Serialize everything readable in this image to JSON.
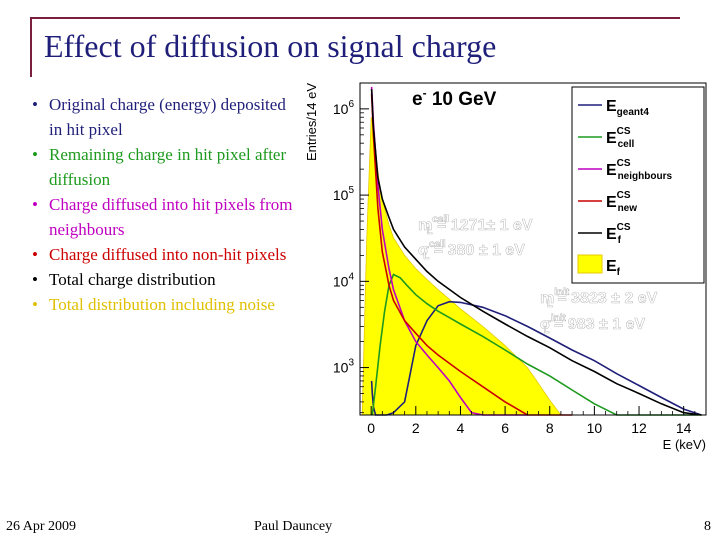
{
  "slide": {
    "title": "Effect of diffusion on signal charge",
    "footer_date": "26 Apr 2009",
    "footer_author": "Paul Dauncey",
    "page_number": "8"
  },
  "bullets": [
    {
      "text": "Original charge (energy) deposited in hit pixel",
      "color": "#1f1f7a"
    },
    {
      "text": "Remaining charge in hit pixel after diffusion",
      "color": "#1e9a1e"
    },
    {
      "text": "Charge diffused into hit pixels from neighbours",
      "color": "#c000c0"
    },
    {
      "text": "Charge diffused into non-hit pixels",
      "color": "#cc0000"
    },
    {
      "text": "Total charge distribution",
      "color": "#000000"
    },
    {
      "text": "Total distribution including noise",
      "color": "#e0c000"
    }
  ],
  "chart_data": {
    "type": "line",
    "title": "e- 10 GeV",
    "title_main": "e",
    "title_sup": "-",
    "title_rest": " 10 GeV",
    "xlabel": "E (keV)",
    "ylabel": "Entries/14 eV",
    "xlim": [
      -0.5,
      15
    ],
    "ylim_log10": [
      2.45,
      6.3
    ],
    "yscale": "log",
    "x_ticks": [
      0,
      2,
      4,
      6,
      8,
      10,
      12,
      14
    ],
    "x_tick_labels": [
      "0",
      "2",
      "4",
      "6",
      "8",
      "10",
      "12",
      "14"
    ],
    "y_ticks": [
      1000,
      10000,
      100000,
      1000000
    ],
    "y_tick_labels": [
      {
        "base": "10",
        "exp": "3"
      },
      {
        "base": "10",
        "exp": "4"
      },
      {
        "base": "10",
        "exp": "5"
      },
      {
        "base": "10",
        "exp": "6"
      }
    ],
    "legend": [
      {
        "main": "E",
        "sub": "geant4",
        "sup": "",
        "color": "#1f1f7a",
        "style": "line"
      },
      {
        "main": "E",
        "sub": "cell",
        "sup": "CS",
        "color": "#1e9a1e",
        "style": "line"
      },
      {
        "main": "E",
        "sub": "neighbours",
        "sup": "CS",
        "color": "#c000c0",
        "style": "line"
      },
      {
        "main": "E",
        "sub": "new",
        "sup": "CS",
        "color": "#cc0000",
        "style": "line"
      },
      {
        "main": "E",
        "sub": "f",
        "sup": "CS",
        "color": "#000000",
        "style": "line"
      },
      {
        "main": "E",
        "sub": "f",
        "sup": "",
        "color": "#ffff00",
        "style": "fill"
      }
    ],
    "annotations": [
      {
        "main": "m",
        "sub": "L",
        "sup": "cell",
        "value": " = 1271± 1 eV",
        "color": "#ffffff"
      },
      {
        "main": "σ",
        "sub": "L",
        "sup": "cell",
        "value": " = 380 ± 1 eV",
        "color": "#ffffff"
      },
      {
        "main": "m",
        "sub": "L",
        "sup": "init",
        "value": " = 3823 ± 2 eV",
        "color": "#ffffff"
      },
      {
        "main": "σ",
        "sub": "L",
        "sup": "init",
        "value": " = 983 ± 1 eV",
        "color": "#ffffff"
      }
    ],
    "series": [
      {
        "name": "Original charge (Egeant4)",
        "color": "#1f1f7a",
        "x": [
          0.02,
          0.05,
          0.1,
          0.2,
          0.35,
          0.5,
          0.7,
          1.0,
          1.5,
          2.0,
          2.5,
          3.0,
          3.5,
          4.0,
          5.0,
          6.0,
          7.0,
          8.0,
          9.0,
          10.0,
          11.0,
          12.0,
          13.0,
          14.0,
          14.8
        ],
        "y": [
          700,
          500,
          350,
          250,
          150,
          130,
          140,
          300,
          400,
          1800,
          3500,
          5200,
          5800,
          5700,
          5000,
          4000,
          3000,
          2200,
          1600,
          1200,
          850,
          620,
          450,
          330,
          280
        ]
      },
      {
        "name": "Remaining in hit pixel (Ecell CS)",
        "color": "#1e9a1e",
        "x": [
          0.05,
          0.2,
          0.4,
          0.6,
          0.8,
          1.0,
          1.3,
          1.6,
          2.0,
          2.5,
          3.0,
          3.5,
          4.0,
          5.0,
          6.0,
          7.0,
          8.0,
          9.0,
          10.0,
          11.0,
          12.0,
          13.0,
          14.0,
          14.8
        ],
        "y": [
          180,
          600,
          1800,
          4500,
          9000,
          12000,
          11000,
          9000,
          7000,
          5500,
          4500,
          3800,
          3200,
          2300,
          1600,
          1100,
          800,
          550,
          380,
          270,
          190,
          140,
          100,
          85
        ]
      },
      {
        "name": "Diffused from neighbours (Eneighbours CS)",
        "color": "#c000c0",
        "x": [
          0.02,
          0.1,
          0.3,
          0.5,
          0.8,
          1.0,
          1.5,
          2.0,
          2.5,
          3.0,
          3.5,
          4.0,
          4.5,
          5.0,
          5.5,
          6.0,
          6.5,
          7.0
        ],
        "y": [
          1800000,
          700000,
          130000,
          40000,
          14000,
          8000,
          3500,
          2000,
          1400,
          1000,
          700,
          450,
          300,
          200,
          150,
          110,
          80,
          60
        ]
      },
      {
        "name": "Diffused into non-hit (Enew CS)",
        "color": "#cc0000",
        "x": [
          0.02,
          0.1,
          0.3,
          0.5,
          0.8,
          1.0,
          1.5,
          2.0,
          2.5,
          3.0,
          4.0,
          5.0,
          6.0,
          7.0,
          8.0,
          9.0
        ],
        "y": [
          1500000,
          500000,
          70000,
          22000,
          9000,
          6000,
          3500,
          2500,
          1800,
          1400,
          900,
          600,
          400,
          250,
          160,
          100
        ]
      },
      {
        "name": "Total (Ef CS)",
        "color": "#000000",
        "x": [
          0.02,
          0.1,
          0.3,
          0.5,
          0.8,
          1.0,
          1.5,
          2.0,
          2.5,
          3.0,
          4.0,
          5.0,
          6.0,
          7.0,
          8.0,
          9.0,
          10.0,
          11.0,
          12.0,
          13.0,
          14.0,
          14.8
        ],
        "y": [
          1700000,
          600000,
          160000,
          90000,
          55000,
          40000,
          25000,
          18000,
          13000,
          10000,
          6500,
          4500,
          3200,
          2300,
          1700,
          1200,
          900,
          650,
          500,
          380,
          300,
          260
        ]
      },
      {
        "name": "Total with noise (Ef)",
        "color": "#ffff00",
        "fill": true,
        "x": [
          -0.4,
          -0.2,
          0.0,
          0.1,
          0.2,
          0.4,
          0.6,
          0.8,
          1.0,
          1.5,
          2.0,
          2.5,
          3.0,
          3.5,
          4.0,
          5.0,
          6.0,
          7.0,
          7.5,
          8.0,
          8.5,
          9.0,
          9.5
        ],
        "y": [
          300,
          30000,
          800000,
          600000,
          300000,
          120000,
          70000,
          45000,
          32000,
          20000,
          14000,
          10500,
          8000,
          6200,
          4800,
          3000,
          1800,
          1000,
          650,
          420,
          280,
          200,
          150
        ]
      }
    ]
  }
}
